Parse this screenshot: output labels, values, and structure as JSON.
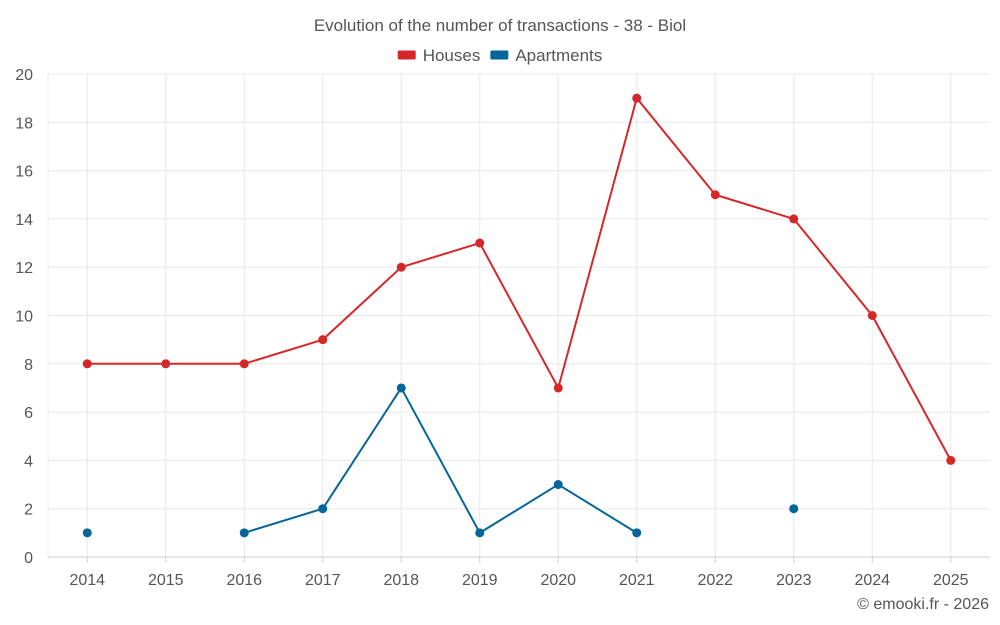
{
  "chart_data": {
    "type": "line",
    "title": "Evolution of the number of transactions - 38 - Biol",
    "categories": [
      "2014",
      "2015",
      "2016",
      "2017",
      "2018",
      "2019",
      "2020",
      "2021",
      "2022",
      "2023",
      "2024",
      "2025"
    ],
    "ylim": [
      0,
      20
    ],
    "yticks": [
      0,
      2,
      4,
      6,
      8,
      10,
      12,
      14,
      16,
      18,
      20
    ],
    "grid": true,
    "legend_position": "top-center",
    "series": [
      {
        "name": "Houses",
        "color": "#d62728",
        "values": [
          8,
          8,
          8,
          9,
          12,
          13,
          7,
          19,
          15,
          14,
          10,
          4
        ]
      },
      {
        "name": "Apartments",
        "color": "#03669a",
        "values": [
          1,
          null,
          1,
          2,
          7,
          1,
          3,
          1,
          null,
          2,
          null,
          null
        ]
      }
    ],
    "credit": "© emooki.fr - 2026"
  }
}
